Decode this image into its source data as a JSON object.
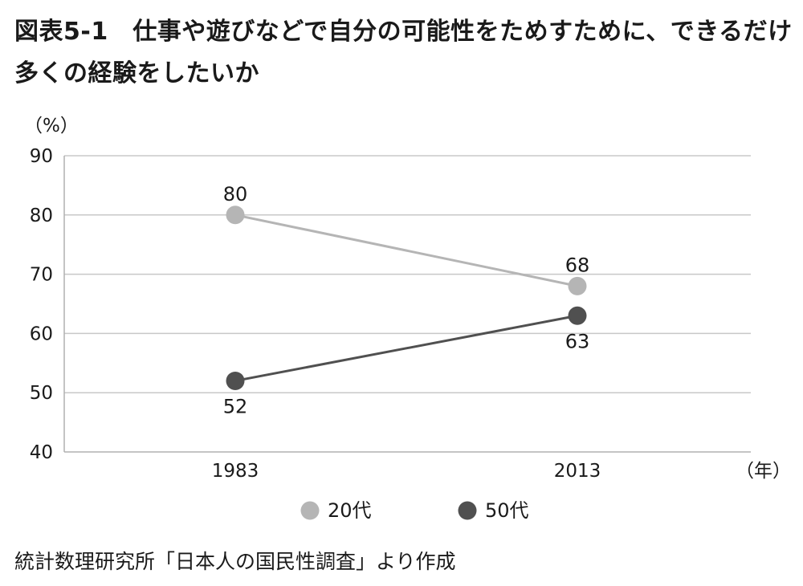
{
  "title": "図表5-1　仕事や遊びなどで自分の可能性をためすために、できるだけ多くの経験をしたいか",
  "source": "統計数理研究所「日本人の国民性調査」より作成",
  "chart_data": {
    "type": "line",
    "title": "図表5-1　仕事や遊びなどで自分の可能性をためすために、できるだけ多くの経験をしたいか",
    "ylabel": "（%）",
    "xlabel": "（年）",
    "categories": [
      "1983",
      "2013"
    ],
    "ylim": [
      40,
      90
    ],
    "yticks": [
      "40",
      "50",
      "60",
      "70",
      "80",
      "90"
    ],
    "grid": true,
    "legend_position": "bottom",
    "series": [
      {
        "name": "20代",
        "values": [
          80,
          68
        ],
        "labels": [
          "80",
          "68"
        ],
        "color": "#b5b5b5"
      },
      {
        "name": "50代",
        "values": [
          52,
          63
        ],
        "labels": [
          "52",
          "63"
        ],
        "color": "#505050"
      }
    ]
  }
}
